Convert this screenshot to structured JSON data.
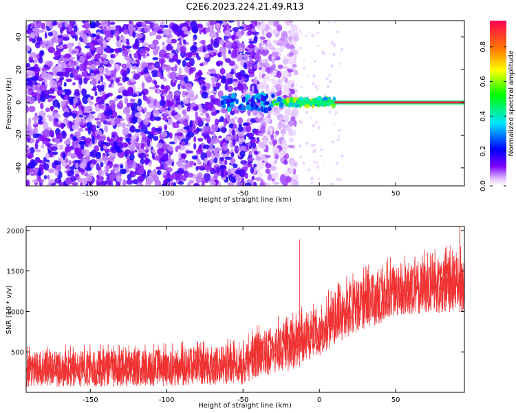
{
  "title": "C2E6.2023.224.21.49.R13",
  "chart_data": [
    {
      "type": "heatmap",
      "xlabel": "Height of straight line (km)",
      "ylabel": "Frequency (Hz)",
      "xlim": [
        -192,
        95
      ],
      "ylim": [
        -51,
        50
      ],
      "xticks": [
        -150,
        -100,
        -50,
        0,
        50
      ],
      "yticks": [
        -40,
        -20,
        0,
        20,
        40
      ],
      "colorbar": {
        "label": "Normalized spectral amplitude",
        "range": [
          0.0,
          0.95
        ],
        "ticks": [
          0.0,
          0.2,
          0.4,
          0.6,
          0.8
        ],
        "colormap": "rainbow"
      },
      "description_regions": [
        {
          "x_range": [
            -192,
            -40
          ],
          "freq_range": [
            -51,
            50
          ],
          "amplitude": [
            0.05,
            0.2
          ]
        },
        {
          "x_range": [
            -40,
            -15
          ],
          "freq_range": [
            -51,
            50
          ],
          "amplitude": [
            0.02,
            0.1
          ]
        },
        {
          "x_range": [
            10,
            95
          ],
          "freq_range": [
            -1,
            1
          ],
          "amplitude": [
            0.6,
            0.95
          ]
        }
      ]
    },
    {
      "type": "line",
      "xlabel": "Height of straight line (km)",
      "ylabel": "SNR (10 * v/v)",
      "xlim": [
        -192,
        95
      ],
      "ylim": [
        0,
        2050
      ],
      "xticks": [
        -150,
        -100,
        -50,
        0,
        50
      ],
      "yticks": [
        500,
        1000,
        1500,
        2000
      ],
      "series": [
        {
          "color": "#f03232",
          "envelope": [
            {
              "x": -192,
              "lo": 60,
              "hi": 580
            },
            {
              "x": -150,
              "lo": 60,
              "hi": 600
            },
            {
              "x": -100,
              "lo": 70,
              "hi": 620
            },
            {
              "x": -50,
              "lo": 90,
              "hi": 680
            },
            {
              "x": -40,
              "lo": 200,
              "hi": 850
            },
            {
              "x": -20,
              "lo": 250,
              "hi": 1000
            },
            {
              "x": 0,
              "lo": 450,
              "hi": 1200
            },
            {
              "x": 20,
              "lo": 700,
              "hi": 1500
            },
            {
              "x": 40,
              "lo": 850,
              "hi": 1650
            },
            {
              "x": 60,
              "lo": 950,
              "hi": 1750
            },
            {
              "x": 95,
              "lo": 1000,
              "hi": 1850
            }
          ],
          "spikes": [
            {
              "x": -13,
              "y": 1890
            },
            {
              "x": 92,
              "y": 2050
            }
          ]
        }
      ]
    }
  ]
}
